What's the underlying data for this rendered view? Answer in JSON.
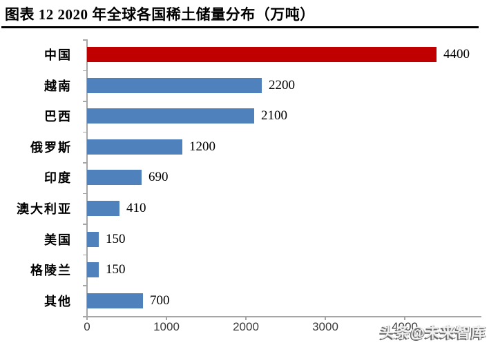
{
  "header": {
    "title": "图表 12 2020 年全球各国稀土储量分布（万吨）"
  },
  "watermark": {
    "text": "头条@未来智库"
  },
  "chart_data": {
    "type": "bar",
    "orientation": "horizontal",
    "title": "2020 年全球各国稀土储量分布（万吨）",
    "unit": "万吨",
    "categories": [
      "中国",
      "越南",
      "巴西",
      "俄罗斯",
      "印度",
      "澳大利亚",
      "美国",
      "格陵兰",
      "其他"
    ],
    "values": [
      4400,
      2200,
      2100,
      1200,
      690,
      410,
      150,
      150,
      700
    ],
    "bar_colors": [
      "#c00000",
      "#4f81bd",
      "#4f81bd",
      "#4f81bd",
      "#4f81bd",
      "#4f81bd",
      "#4f81bd",
      "#4f81bd",
      "#4f81bd"
    ],
    "highlight_color": "#c00000",
    "default_color": "#4f81bd",
    "axis_color": "#a6a6a6",
    "x_ticks": [
      0,
      1000,
      2000,
      3000,
      4000
    ],
    "xlim": [
      0,
      4970
    ],
    "grid": false,
    "legend": false,
    "value_label_position": "outside-end"
  }
}
